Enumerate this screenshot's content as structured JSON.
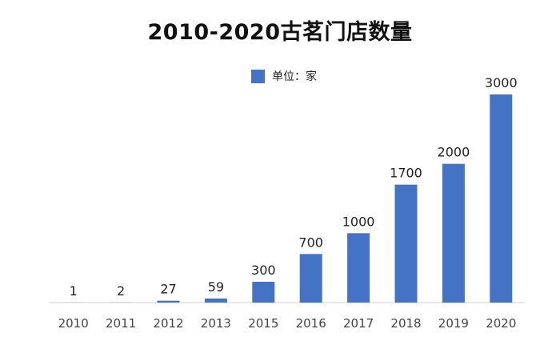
{
  "colors": {
    "bar": "#4472c4",
    "axis": "#d0d0d0",
    "text": "#222222",
    "tick": "#444444"
  },
  "chart_data": {
    "type": "bar",
    "title": "2010-2020古茗门店数量",
    "legend": {
      "label": "单位：家",
      "placement": "top-center"
    },
    "categories": [
      "2010",
      "2011",
      "2012",
      "2013",
      "2015",
      "2016",
      "2017",
      "2018",
      "2019",
      "2020"
    ],
    "values": [
      1,
      2,
      27,
      59,
      300,
      700,
      1000,
      1700,
      2000,
      3000
    ],
    "data_labels": [
      "1",
      "2",
      "27",
      "59",
      "300",
      "700",
      "1000",
      "1700",
      "2000",
      "3000"
    ],
    "ylim": [
      0,
      3000
    ],
    "grid": false,
    "xlabel": "",
    "ylabel": ""
  }
}
